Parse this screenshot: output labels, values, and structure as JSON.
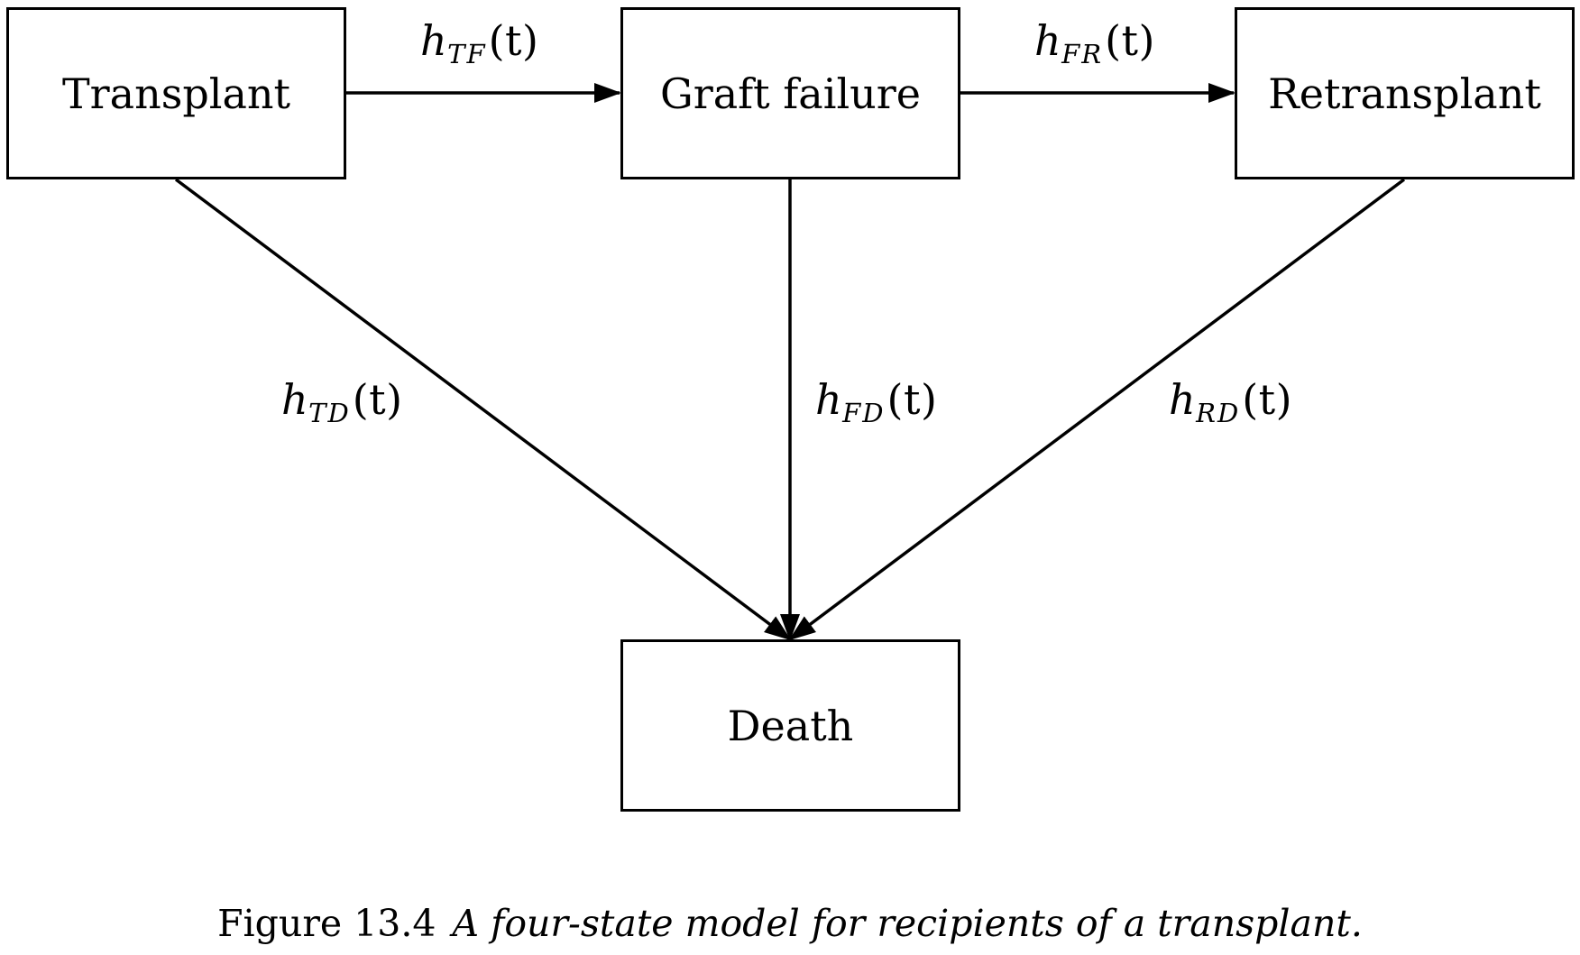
{
  "nodes": {
    "transplant": "Transplant",
    "graft_failure": "Graft failure",
    "retransplant": "Retransplant",
    "death": "Death"
  },
  "transitions": {
    "tf": {
      "symbol": "h",
      "subscript": "TF",
      "argument": "(t)"
    },
    "fr": {
      "symbol": "h",
      "subscript": "FR",
      "argument": "(t)"
    },
    "td": {
      "symbol": "h",
      "subscript": "TD",
      "argument": "(t)"
    },
    "fd": {
      "symbol": "h",
      "subscript": "FD",
      "argument": "(t)"
    },
    "rd": {
      "symbol": "h",
      "subscript": "RD",
      "argument": "(t)"
    }
  },
  "caption": {
    "label": "Figure 13.4",
    "text": "A four-state model for recipients of a transplant."
  }
}
